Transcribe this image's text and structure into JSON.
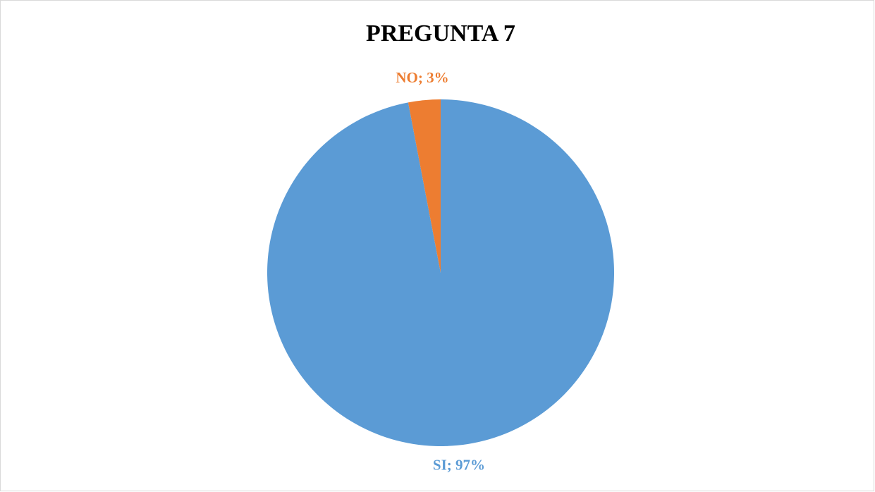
{
  "chart_data": {
    "type": "pie",
    "title": "PREGUNTA 7",
    "categories": [
      "SI",
      "NO"
    ],
    "values": [
      97,
      3
    ],
    "value_labels": [
      "SI; 97%",
      "NO; 3%"
    ],
    "colors": [
      "#5b9bd5",
      "#ed7d31"
    ]
  }
}
